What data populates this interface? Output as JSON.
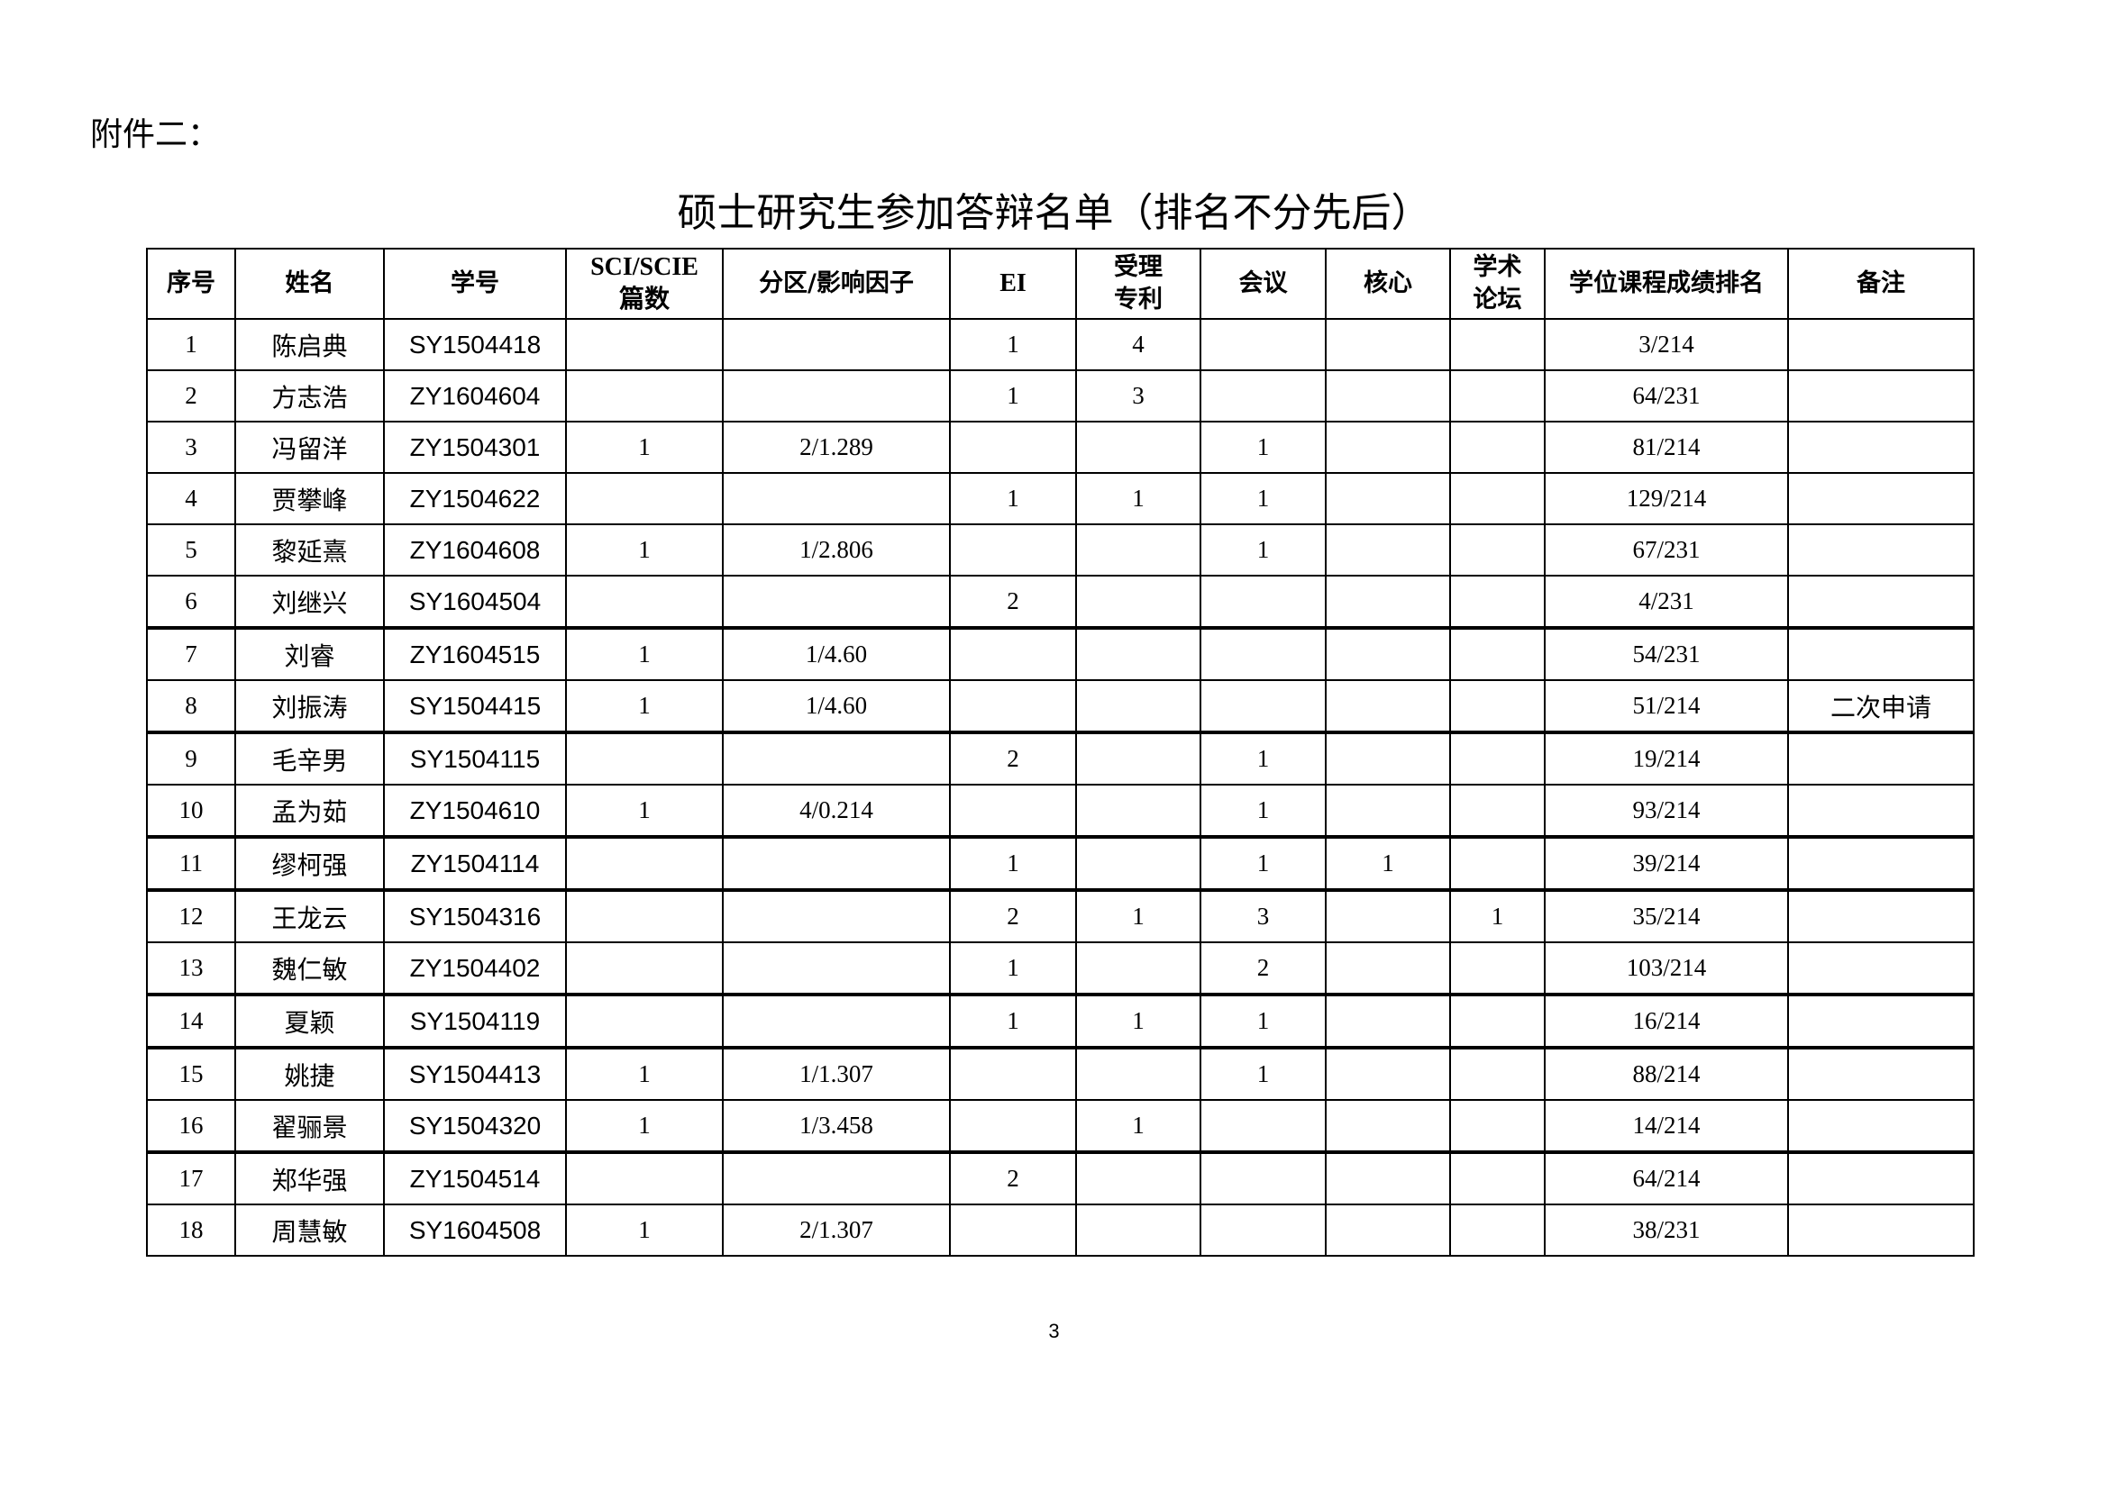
{
  "attachment_label": "附件二：",
  "title": "硕士研究生参加答辩名单（排名不分先后）",
  "columns": [
    "序号",
    "姓名",
    "学号",
    "SCI/SCIE\n篇数",
    "分区/影响因子",
    "EI",
    "受理\n专利",
    "会议",
    "核心",
    "学术\n论坛",
    "学位课程成绩排名",
    "备注"
  ],
  "rows": [
    [
      "1",
      "陈启典",
      "SY1504418",
      "",
      "",
      "1",
      "4",
      "",
      "",
      "",
      "3/214",
      ""
    ],
    [
      "2",
      "方志浩",
      "ZY1604604",
      "",
      "",
      "1",
      "3",
      "",
      "",
      "",
      "64/231",
      ""
    ],
    [
      "3",
      "冯留洋",
      "ZY1504301",
      "1",
      "2/1.289",
      "",
      "",
      "1",
      "",
      "",
      "81/214",
      ""
    ],
    [
      "4",
      "贾攀峰",
      "ZY1504622",
      "",
      "",
      "1",
      "1",
      "1",
      "",
      "",
      "129/214",
      ""
    ],
    [
      "5",
      "黎延熹",
      "ZY1604608",
      "1",
      "1/2.806",
      "",
      "",
      "1",
      "",
      "",
      "67/231",
      ""
    ],
    [
      "6",
      "刘继兴",
      "SY1604504",
      "",
      "",
      "2",
      "",
      "",
      "",
      "",
      "4/231",
      ""
    ],
    [
      "7",
      "刘睿",
      "ZY1604515",
      "1",
      "1/4.60",
      "",
      "",
      "",
      "",
      "",
      "54/231",
      ""
    ],
    [
      "8",
      "刘振涛",
      "SY1504415",
      "1",
      "1/4.60",
      "",
      "",
      "",
      "",
      "",
      "51/214",
      "二次申请"
    ],
    [
      "9",
      "毛辛男",
      "SY1504115",
      "",
      "",
      "2",
      "",
      "1",
      "",
      "",
      "19/214",
      ""
    ],
    [
      "10",
      "孟为茹",
      "ZY1504610",
      "1",
      "4/0.214",
      "",
      "",
      "1",
      "",
      "",
      "93/214",
      ""
    ],
    [
      "11",
      "缪柯强",
      "ZY1504114",
      "",
      "",
      "1",
      "",
      "1",
      "1",
      "",
      "39/214",
      ""
    ],
    [
      "12",
      "王龙云",
      "SY1504316",
      "",
      "",
      "2",
      "1",
      "3",
      "",
      "1",
      "35/214",
      ""
    ],
    [
      "13",
      "魏仁敏",
      "ZY1504402",
      "",
      "",
      "1",
      "",
      "2",
      "",
      "",
      "103/214",
      ""
    ],
    [
      "14",
      "夏颖",
      "SY1504119",
      "",
      "",
      "1",
      "1",
      "1",
      "",
      "",
      "16/214",
      ""
    ],
    [
      "15",
      "姚捷",
      "SY1504413",
      "1",
      "1/1.307",
      "",
      "",
      "1",
      "",
      "",
      "88/214",
      ""
    ],
    [
      "16",
      "翟骊景",
      "SY1504320",
      "1",
      "1/3.458",
      "",
      "1",
      "",
      "",
      "",
      "14/214",
      ""
    ],
    [
      "17",
      "郑华强",
      "ZY1504514",
      "",
      "",
      "2",
      "",
      "",
      "",
      "",
      "64/214",
      ""
    ],
    [
      "18",
      "周慧敏",
      "SY1604508",
      "1",
      "2/1.307",
      "",
      "",
      "",
      "",
      "",
      "38/231",
      ""
    ]
  ],
  "page_number": "3"
}
